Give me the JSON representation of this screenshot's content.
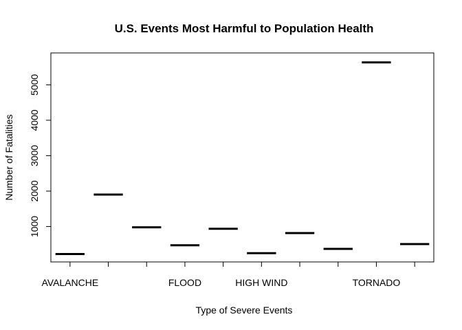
{
  "chart_data": {
    "type": "bar",
    "title": "U.S. Events Most Harmful to Population Health",
    "xlabel": "Type of Severe Events",
    "ylabel": "Number of Fatalities",
    "categories": [
      "AVALANCHE",
      "",
      "",
      "FLOOD",
      "",
      "HIGH WIND",
      "",
      "",
      "TORNADO",
      ""
    ],
    "values": [
      224,
      1903,
      978,
      470,
      937,
      248,
      816,
      368,
      5633,
      504
    ],
    "ylim": [
      0,
      5900
    ],
    "yticks": [
      1000,
      2000,
      3000,
      4000,
      5000
    ],
    "grid": false,
    "legend": "none"
  }
}
